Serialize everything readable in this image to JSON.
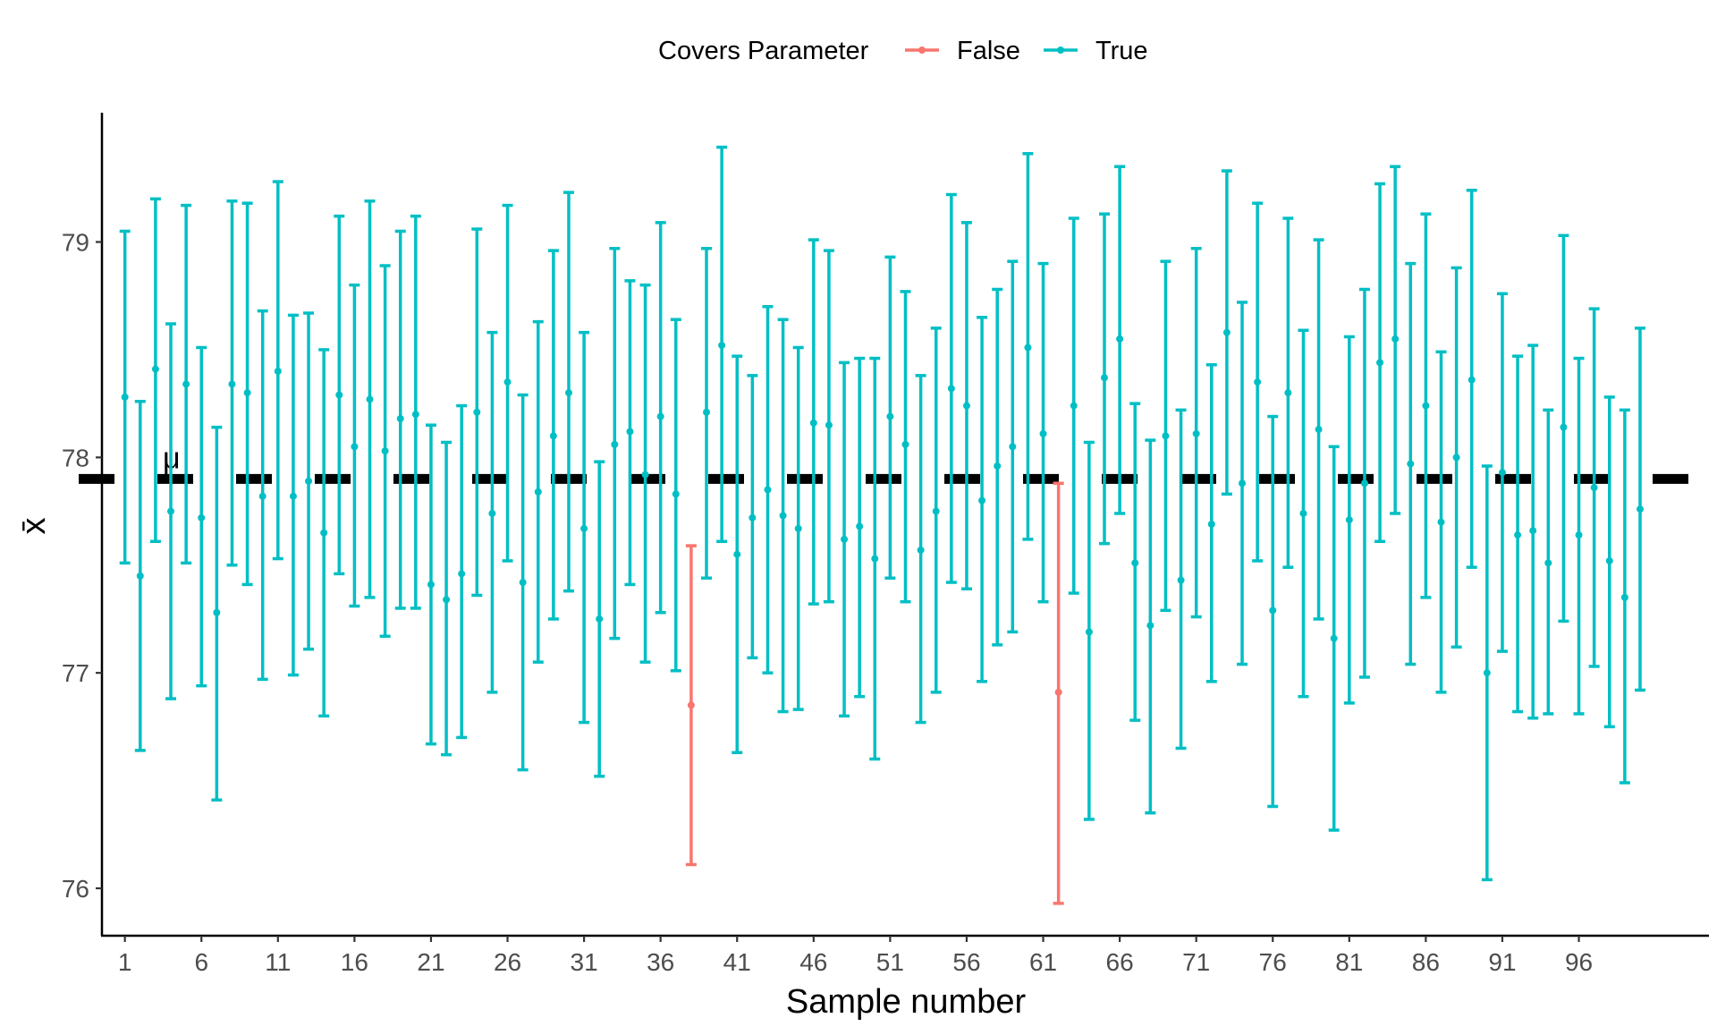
{
  "legend": {
    "title": "Covers Parameter",
    "items": [
      {
        "label": "False",
        "color": "#F8766D"
      },
      {
        "label": "True",
        "color": "#00BFC4"
      }
    ]
  },
  "chart_data": {
    "type": "errorbar",
    "xlabel": "Sample number",
    "ylabel": "x̄",
    "mu_label": "μ",
    "mu": 77.9,
    "ylim": [
      75.78,
      79.6
    ],
    "xlim": [
      -0.5,
      104.5
    ],
    "yticks": [
      76,
      77,
      78,
      79
    ],
    "xticks": [
      1,
      6,
      11,
      16,
      21,
      26,
      31,
      36,
      41,
      46,
      51,
      56,
      61,
      66,
      71,
      76,
      81,
      86,
      91,
      96
    ],
    "series": [
      {
        "name": "False",
        "color": "#F8766D"
      },
      {
        "name": "True",
        "color": "#00BFC4"
      }
    ],
    "points": [
      {
        "x": 1,
        "mean": 78.28,
        "lower": 77.51,
        "upper": 79.05,
        "covers": "True"
      },
      {
        "x": 2,
        "mean": 77.45,
        "lower": 76.64,
        "upper": 78.26,
        "covers": "True"
      },
      {
        "x": 3,
        "mean": 78.41,
        "lower": 77.61,
        "upper": 79.2,
        "covers": "True"
      },
      {
        "x": 4,
        "mean": 77.75,
        "lower": 76.88,
        "upper": 78.62,
        "covers": "True"
      },
      {
        "x": 5,
        "mean": 78.34,
        "lower": 77.51,
        "upper": 79.17,
        "covers": "True"
      },
      {
        "x": 6,
        "mean": 77.72,
        "lower": 76.94,
        "upper": 78.51,
        "covers": "True"
      },
      {
        "x": 7,
        "mean": 77.28,
        "lower": 76.41,
        "upper": 78.14,
        "covers": "True"
      },
      {
        "x": 8,
        "mean": 78.34,
        "lower": 77.5,
        "upper": 79.19,
        "covers": "True"
      },
      {
        "x": 9,
        "mean": 78.3,
        "lower": 77.41,
        "upper": 79.18,
        "covers": "True"
      },
      {
        "x": 10,
        "mean": 77.82,
        "lower": 76.97,
        "upper": 78.68,
        "covers": "True"
      },
      {
        "x": 11,
        "mean": 78.4,
        "lower": 77.53,
        "upper": 79.28,
        "covers": "True"
      },
      {
        "x": 12,
        "mean": 77.82,
        "lower": 76.99,
        "upper": 78.66,
        "covers": "True"
      },
      {
        "x": 13,
        "mean": 77.89,
        "lower": 77.11,
        "upper": 78.67,
        "covers": "True"
      },
      {
        "x": 14,
        "mean": 77.65,
        "lower": 76.8,
        "upper": 78.5,
        "covers": "True"
      },
      {
        "x": 15,
        "mean": 78.29,
        "lower": 77.46,
        "upper": 79.12,
        "covers": "True"
      },
      {
        "x": 16,
        "mean": 78.05,
        "lower": 77.31,
        "upper": 78.8,
        "covers": "True"
      },
      {
        "x": 17,
        "mean": 78.27,
        "lower": 77.35,
        "upper": 79.19,
        "covers": "True"
      },
      {
        "x": 18,
        "mean": 78.03,
        "lower": 77.17,
        "upper": 78.89,
        "covers": "True"
      },
      {
        "x": 19,
        "mean": 78.18,
        "lower": 77.3,
        "upper": 79.05,
        "covers": "True"
      },
      {
        "x": 20,
        "mean": 78.2,
        "lower": 77.3,
        "upper": 79.12,
        "covers": "True"
      },
      {
        "x": 21,
        "mean": 77.41,
        "lower": 76.67,
        "upper": 78.15,
        "covers": "True"
      },
      {
        "x": 22,
        "mean": 77.34,
        "lower": 76.62,
        "upper": 78.07,
        "covers": "True"
      },
      {
        "x": 23,
        "mean": 77.46,
        "lower": 76.7,
        "upper": 78.24,
        "covers": "True"
      },
      {
        "x": 24,
        "mean": 78.21,
        "lower": 77.36,
        "upper": 79.06,
        "covers": "True"
      },
      {
        "x": 25,
        "mean": 77.74,
        "lower": 76.91,
        "upper": 78.58,
        "covers": "True"
      },
      {
        "x": 26,
        "mean": 78.35,
        "lower": 77.52,
        "upper": 79.17,
        "covers": "True"
      },
      {
        "x": 27,
        "mean": 77.42,
        "lower": 76.55,
        "upper": 78.29,
        "covers": "True"
      },
      {
        "x": 28,
        "mean": 77.84,
        "lower": 77.05,
        "upper": 78.63,
        "covers": "True"
      },
      {
        "x": 29,
        "mean": 78.1,
        "lower": 77.25,
        "upper": 78.96,
        "covers": "True"
      },
      {
        "x": 30,
        "mean": 78.3,
        "lower": 77.38,
        "upper": 79.23,
        "covers": "True"
      },
      {
        "x": 31,
        "mean": 77.67,
        "lower": 76.77,
        "upper": 78.58,
        "covers": "True"
      },
      {
        "x": 32,
        "mean": 77.25,
        "lower": 76.52,
        "upper": 77.98,
        "covers": "True"
      },
      {
        "x": 33,
        "mean": 78.06,
        "lower": 77.16,
        "upper": 78.97,
        "covers": "True"
      },
      {
        "x": 34,
        "mean": 78.12,
        "lower": 77.41,
        "upper": 78.82,
        "covers": "True"
      },
      {
        "x": 35,
        "mean": 77.92,
        "lower": 77.05,
        "upper": 78.8,
        "covers": "True"
      },
      {
        "x": 36,
        "mean": 78.19,
        "lower": 77.28,
        "upper": 79.09,
        "covers": "True"
      },
      {
        "x": 37,
        "mean": 77.83,
        "lower": 77.01,
        "upper": 78.64,
        "covers": "True"
      },
      {
        "x": 38,
        "mean": 76.85,
        "lower": 76.11,
        "upper": 77.59,
        "covers": "False"
      },
      {
        "x": 39,
        "mean": 78.21,
        "lower": 77.44,
        "upper": 78.97,
        "covers": "True"
      },
      {
        "x": 40,
        "mean": 78.52,
        "lower": 77.61,
        "upper": 79.44,
        "covers": "True"
      },
      {
        "x": 41,
        "mean": 77.55,
        "lower": 76.63,
        "upper": 78.47,
        "covers": "True"
      },
      {
        "x": 42,
        "mean": 77.72,
        "lower": 77.07,
        "upper": 78.38,
        "covers": "True"
      },
      {
        "x": 43,
        "mean": 77.85,
        "lower": 77.0,
        "upper": 78.7,
        "covers": "True"
      },
      {
        "x": 44,
        "mean": 77.73,
        "lower": 76.82,
        "upper": 78.64,
        "covers": "True"
      },
      {
        "x": 45,
        "mean": 77.67,
        "lower": 76.83,
        "upper": 78.51,
        "covers": "True"
      },
      {
        "x": 46,
        "mean": 78.16,
        "lower": 77.32,
        "upper": 79.01,
        "covers": "True"
      },
      {
        "x": 47,
        "mean": 78.15,
        "lower": 77.33,
        "upper": 78.96,
        "covers": "True"
      },
      {
        "x": 48,
        "mean": 77.62,
        "lower": 76.8,
        "upper": 78.44,
        "covers": "True"
      },
      {
        "x": 49,
        "mean": 77.68,
        "lower": 76.89,
        "upper": 78.46,
        "covers": "True"
      },
      {
        "x": 50,
        "mean": 77.53,
        "lower": 76.6,
        "upper": 78.46,
        "covers": "True"
      },
      {
        "x": 51,
        "mean": 78.19,
        "lower": 77.44,
        "upper": 78.93,
        "covers": "True"
      },
      {
        "x": 52,
        "mean": 78.06,
        "lower": 77.33,
        "upper": 78.77,
        "covers": "True"
      },
      {
        "x": 53,
        "mean": 77.57,
        "lower": 76.77,
        "upper": 78.38,
        "covers": "True"
      },
      {
        "x": 54,
        "mean": 77.75,
        "lower": 76.91,
        "upper": 78.6,
        "covers": "True"
      },
      {
        "x": 55,
        "mean": 78.32,
        "lower": 77.42,
        "upper": 79.22,
        "covers": "True"
      },
      {
        "x": 56,
        "mean": 78.24,
        "lower": 77.39,
        "upper": 79.09,
        "covers": "True"
      },
      {
        "x": 57,
        "mean": 77.8,
        "lower": 76.96,
        "upper": 78.65,
        "covers": "True"
      },
      {
        "x": 58,
        "mean": 77.96,
        "lower": 77.13,
        "upper": 78.78,
        "covers": "True"
      },
      {
        "x": 59,
        "mean": 78.05,
        "lower": 77.19,
        "upper": 78.91,
        "covers": "True"
      },
      {
        "x": 60,
        "mean": 78.51,
        "lower": 77.62,
        "upper": 79.41,
        "covers": "True"
      },
      {
        "x": 61,
        "mean": 78.11,
        "lower": 77.33,
        "upper": 78.9,
        "covers": "True"
      },
      {
        "x": 62,
        "mean": 76.91,
        "lower": 75.93,
        "upper": 77.88,
        "covers": "False"
      },
      {
        "x": 63,
        "mean": 78.24,
        "lower": 77.37,
        "upper": 79.11,
        "covers": "True"
      },
      {
        "x": 64,
        "mean": 77.19,
        "lower": 76.32,
        "upper": 78.07,
        "covers": "True"
      },
      {
        "x": 65,
        "mean": 78.37,
        "lower": 77.6,
        "upper": 79.13,
        "covers": "True"
      },
      {
        "x": 66,
        "mean": 78.55,
        "lower": 77.74,
        "upper": 79.35,
        "covers": "True"
      },
      {
        "x": 67,
        "mean": 77.51,
        "lower": 76.78,
        "upper": 78.25,
        "covers": "True"
      },
      {
        "x": 68,
        "mean": 77.22,
        "lower": 76.35,
        "upper": 78.08,
        "covers": "True"
      },
      {
        "x": 69,
        "mean": 78.1,
        "lower": 77.29,
        "upper": 78.91,
        "covers": "True"
      },
      {
        "x": 70,
        "mean": 77.43,
        "lower": 76.65,
        "upper": 78.22,
        "covers": "True"
      },
      {
        "x": 71,
        "mean": 78.11,
        "lower": 77.26,
        "upper": 78.97,
        "covers": "True"
      },
      {
        "x": 72,
        "mean": 77.69,
        "lower": 76.96,
        "upper": 78.43,
        "covers": "True"
      },
      {
        "x": 73,
        "mean": 78.58,
        "lower": 77.83,
        "upper": 79.33,
        "covers": "True"
      },
      {
        "x": 74,
        "mean": 77.88,
        "lower": 77.04,
        "upper": 78.72,
        "covers": "True"
      },
      {
        "x": 75,
        "mean": 78.35,
        "lower": 77.52,
        "upper": 79.18,
        "covers": "True"
      },
      {
        "x": 76,
        "mean": 77.29,
        "lower": 76.38,
        "upper": 78.19,
        "covers": "True"
      },
      {
        "x": 77,
        "mean": 78.3,
        "lower": 77.49,
        "upper": 79.11,
        "covers": "True"
      },
      {
        "x": 78,
        "mean": 77.74,
        "lower": 76.89,
        "upper": 78.59,
        "covers": "True"
      },
      {
        "x": 79,
        "mean": 78.13,
        "lower": 77.25,
        "upper": 79.01,
        "covers": "True"
      },
      {
        "x": 80,
        "mean": 77.16,
        "lower": 76.27,
        "upper": 78.05,
        "covers": "True"
      },
      {
        "x": 81,
        "mean": 77.71,
        "lower": 76.86,
        "upper": 78.56,
        "covers": "True"
      },
      {
        "x": 82,
        "mean": 77.88,
        "lower": 76.98,
        "upper": 78.78,
        "covers": "True"
      },
      {
        "x": 83,
        "mean": 78.44,
        "lower": 77.61,
        "upper": 79.27,
        "covers": "True"
      },
      {
        "x": 84,
        "mean": 78.55,
        "lower": 77.74,
        "upper": 79.35,
        "covers": "True"
      },
      {
        "x": 85,
        "mean": 77.97,
        "lower": 77.04,
        "upper": 78.9,
        "covers": "True"
      },
      {
        "x": 86,
        "mean": 78.24,
        "lower": 77.35,
        "upper": 79.13,
        "covers": "True"
      },
      {
        "x": 87,
        "mean": 77.7,
        "lower": 76.91,
        "upper": 78.49,
        "covers": "True"
      },
      {
        "x": 88,
        "mean": 78.0,
        "lower": 77.12,
        "upper": 78.88,
        "covers": "True"
      },
      {
        "x": 89,
        "mean": 78.36,
        "lower": 77.49,
        "upper": 79.24,
        "covers": "True"
      },
      {
        "x": 90,
        "mean": 77.0,
        "lower": 76.04,
        "upper": 77.96,
        "covers": "True"
      },
      {
        "x": 91,
        "mean": 77.93,
        "lower": 77.1,
        "upper": 78.76,
        "covers": "True"
      },
      {
        "x": 92,
        "mean": 77.64,
        "lower": 76.82,
        "upper": 78.47,
        "covers": "True"
      },
      {
        "x": 93,
        "mean": 77.66,
        "lower": 76.79,
        "upper": 78.52,
        "covers": "True"
      },
      {
        "x": 94,
        "mean": 77.51,
        "lower": 76.81,
        "upper": 78.22,
        "covers": "True"
      },
      {
        "x": 95,
        "mean": 78.14,
        "lower": 77.24,
        "upper": 79.03,
        "covers": "True"
      },
      {
        "x": 96,
        "mean": 77.64,
        "lower": 76.81,
        "upper": 78.46,
        "covers": "True"
      },
      {
        "x": 97,
        "mean": 77.86,
        "lower": 77.03,
        "upper": 78.69,
        "covers": "True"
      },
      {
        "x": 98,
        "mean": 77.52,
        "lower": 76.75,
        "upper": 78.28,
        "covers": "True"
      },
      {
        "x": 99,
        "mean": 77.35,
        "lower": 76.49,
        "upper": 78.22,
        "covers": "True"
      },
      {
        "x": 100,
        "mean": 77.76,
        "lower": 76.92,
        "upper": 78.6,
        "covers": "True"
      }
    ]
  }
}
